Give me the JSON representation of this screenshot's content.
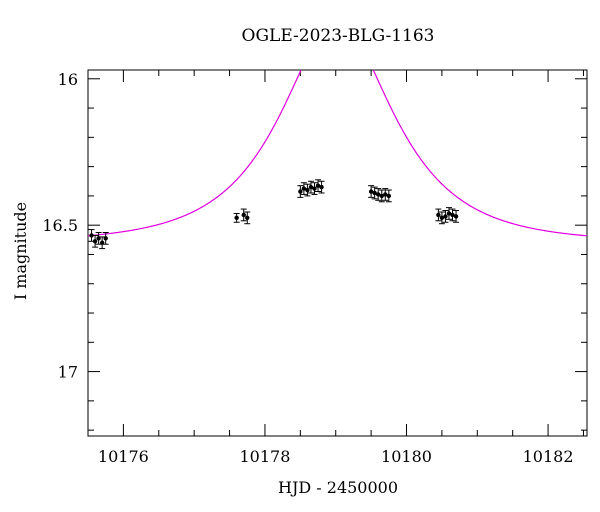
{
  "chart_data": {
    "type": "scatter",
    "title": "OGLE-2023-BLG-1163",
    "xlabel": "HJD - 2450000",
    "ylabel": "I magnitude",
    "xlim": [
      10175.5,
      10182.55
    ],
    "ylim": [
      17.22,
      15.97
    ],
    "y_inverted": true,
    "x_ticks": [
      10176,
      10178,
      10180,
      10182
    ],
    "x_tick_labels": [
      "10176",
      "10178",
      "10180",
      "10182"
    ],
    "y_ticks": [
      16,
      16.5,
      17
    ],
    "y_tick_labels": [
      "16",
      "16.5",
      "17"
    ],
    "x_minor_step": 0.5,
    "y_minor_step": 0.1,
    "grid": false,
    "colors": {
      "model": "#e000e0",
      "points": "#000000",
      "axes": "#000000"
    },
    "series": [
      {
        "kind": "model",
        "model": {
          "t0": 10179.02,
          "u0": 0.55,
          "tE": 1.3,
          "baseline": 16.56
        }
      },
      {
        "kind": "points",
        "points": [
          {
            "x": 10175.55,
            "y": 16.535,
            "err": 0.02
          },
          {
            "x": 10175.6,
            "y": 16.555,
            "err": 0.02
          },
          {
            "x": 10175.65,
            "y": 16.545,
            "err": 0.02
          },
          {
            "x": 10175.7,
            "y": 16.56,
            "err": 0.02
          },
          {
            "x": 10175.75,
            "y": 16.545,
            "err": 0.02
          },
          {
            "x": 10177.6,
            "y": 16.475,
            "err": 0.015
          },
          {
            "x": 10177.7,
            "y": 16.465,
            "err": 0.02
          },
          {
            "x": 10177.75,
            "y": 16.475,
            "err": 0.02
          },
          {
            "x": 10178.5,
            "y": 16.385,
            "err": 0.02
          },
          {
            "x": 10178.55,
            "y": 16.375,
            "err": 0.02
          },
          {
            "x": 10178.6,
            "y": 16.38,
            "err": 0.02
          },
          {
            "x": 10178.65,
            "y": 16.37,
            "err": 0.02
          },
          {
            "x": 10178.7,
            "y": 16.375,
            "err": 0.02
          },
          {
            "x": 10178.75,
            "y": 16.365,
            "err": 0.02
          },
          {
            "x": 10178.8,
            "y": 16.37,
            "err": 0.02
          },
          {
            "x": 10179.5,
            "y": 16.385,
            "err": 0.02
          },
          {
            "x": 10179.55,
            "y": 16.39,
            "err": 0.02
          },
          {
            "x": 10179.6,
            "y": 16.395,
            "err": 0.02
          },
          {
            "x": 10179.65,
            "y": 16.4,
            "err": 0.02
          },
          {
            "x": 10179.7,
            "y": 16.395,
            "err": 0.02
          },
          {
            "x": 10179.75,
            "y": 16.4,
            "err": 0.02
          },
          {
            "x": 10180.45,
            "y": 16.465,
            "err": 0.02
          },
          {
            "x": 10180.5,
            "y": 16.475,
            "err": 0.02
          },
          {
            "x": 10180.55,
            "y": 16.47,
            "err": 0.02
          },
          {
            "x": 10180.6,
            "y": 16.46,
            "err": 0.02
          },
          {
            "x": 10180.65,
            "y": 16.465,
            "err": 0.02
          },
          {
            "x": 10180.7,
            "y": 16.47,
            "err": 0.02
          }
        ]
      }
    ]
  }
}
